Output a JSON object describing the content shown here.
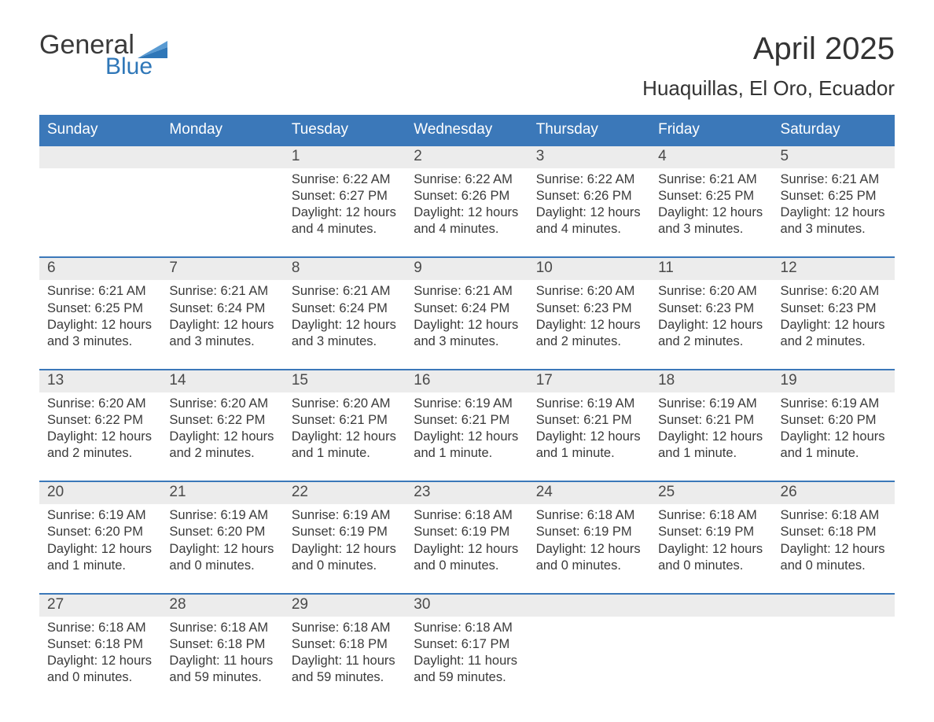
{
  "colors": {
    "header_bg": "#3b78b9",
    "header_text": "#ffffff",
    "daynum_bg": "#ececec",
    "daynum_text": "#4a4a4a",
    "row_border": "#3b78b9",
    "body_text": "#3a3a3a",
    "logo_blue": "#2f77b8",
    "logo_text": "#3a3a3a",
    "background": "#ffffff"
  },
  "fonts": {
    "family": "Arial, Helvetica, sans-serif",
    "month_title_size": 40,
    "location_size": 26,
    "header_size": 19,
    "daynum_size": 19,
    "detail_size": 16.5
  },
  "logo": {
    "word1": "General",
    "word2": "Blue"
  },
  "title": {
    "month": "April 2025",
    "location": "Huaquillas, El Oro, Ecuador"
  },
  "day_headers": [
    "Sunday",
    "Monday",
    "Tuesday",
    "Wednesday",
    "Thursday",
    "Friday",
    "Saturday"
  ],
  "weeks": [
    [
      {
        "blank": true
      },
      {
        "blank": true
      },
      {
        "day": "1",
        "sunrise": "Sunrise: 6:22 AM",
        "sunset": "Sunset: 6:27 PM",
        "day1": "Daylight: 12 hours",
        "day2": "and 4 minutes."
      },
      {
        "day": "2",
        "sunrise": "Sunrise: 6:22 AM",
        "sunset": "Sunset: 6:26 PM",
        "day1": "Daylight: 12 hours",
        "day2": "and 4 minutes."
      },
      {
        "day": "3",
        "sunrise": "Sunrise: 6:22 AM",
        "sunset": "Sunset: 6:26 PM",
        "day1": "Daylight: 12 hours",
        "day2": "and 4 minutes."
      },
      {
        "day": "4",
        "sunrise": "Sunrise: 6:21 AM",
        "sunset": "Sunset: 6:25 PM",
        "day1": "Daylight: 12 hours",
        "day2": "and 3 minutes."
      },
      {
        "day": "5",
        "sunrise": "Sunrise: 6:21 AM",
        "sunset": "Sunset: 6:25 PM",
        "day1": "Daylight: 12 hours",
        "day2": "and 3 minutes."
      }
    ],
    [
      {
        "day": "6",
        "sunrise": "Sunrise: 6:21 AM",
        "sunset": "Sunset: 6:25 PM",
        "day1": "Daylight: 12 hours",
        "day2": "and 3 minutes."
      },
      {
        "day": "7",
        "sunrise": "Sunrise: 6:21 AM",
        "sunset": "Sunset: 6:24 PM",
        "day1": "Daylight: 12 hours",
        "day2": "and 3 minutes."
      },
      {
        "day": "8",
        "sunrise": "Sunrise: 6:21 AM",
        "sunset": "Sunset: 6:24 PM",
        "day1": "Daylight: 12 hours",
        "day2": "and 3 minutes."
      },
      {
        "day": "9",
        "sunrise": "Sunrise: 6:21 AM",
        "sunset": "Sunset: 6:24 PM",
        "day1": "Daylight: 12 hours",
        "day2": "and 3 minutes."
      },
      {
        "day": "10",
        "sunrise": "Sunrise: 6:20 AM",
        "sunset": "Sunset: 6:23 PM",
        "day1": "Daylight: 12 hours",
        "day2": "and 2 minutes."
      },
      {
        "day": "11",
        "sunrise": "Sunrise: 6:20 AM",
        "sunset": "Sunset: 6:23 PM",
        "day1": "Daylight: 12 hours",
        "day2": "and 2 minutes."
      },
      {
        "day": "12",
        "sunrise": "Sunrise: 6:20 AM",
        "sunset": "Sunset: 6:23 PM",
        "day1": "Daylight: 12 hours",
        "day2": "and 2 minutes."
      }
    ],
    [
      {
        "day": "13",
        "sunrise": "Sunrise: 6:20 AM",
        "sunset": "Sunset: 6:22 PM",
        "day1": "Daylight: 12 hours",
        "day2": "and 2 minutes."
      },
      {
        "day": "14",
        "sunrise": "Sunrise: 6:20 AM",
        "sunset": "Sunset: 6:22 PM",
        "day1": "Daylight: 12 hours",
        "day2": "and 2 minutes."
      },
      {
        "day": "15",
        "sunrise": "Sunrise: 6:20 AM",
        "sunset": "Sunset: 6:21 PM",
        "day1": "Daylight: 12 hours",
        "day2": "and 1 minute."
      },
      {
        "day": "16",
        "sunrise": "Sunrise: 6:19 AM",
        "sunset": "Sunset: 6:21 PM",
        "day1": "Daylight: 12 hours",
        "day2": "and 1 minute."
      },
      {
        "day": "17",
        "sunrise": "Sunrise: 6:19 AM",
        "sunset": "Sunset: 6:21 PM",
        "day1": "Daylight: 12 hours",
        "day2": "and 1 minute."
      },
      {
        "day": "18",
        "sunrise": "Sunrise: 6:19 AM",
        "sunset": "Sunset: 6:21 PM",
        "day1": "Daylight: 12 hours",
        "day2": "and 1 minute."
      },
      {
        "day": "19",
        "sunrise": "Sunrise: 6:19 AM",
        "sunset": "Sunset: 6:20 PM",
        "day1": "Daylight: 12 hours",
        "day2": "and 1 minute."
      }
    ],
    [
      {
        "day": "20",
        "sunrise": "Sunrise: 6:19 AM",
        "sunset": "Sunset: 6:20 PM",
        "day1": "Daylight: 12 hours",
        "day2": "and 1 minute."
      },
      {
        "day": "21",
        "sunrise": "Sunrise: 6:19 AM",
        "sunset": "Sunset: 6:20 PM",
        "day1": "Daylight: 12 hours",
        "day2": "and 0 minutes."
      },
      {
        "day": "22",
        "sunrise": "Sunrise: 6:19 AM",
        "sunset": "Sunset: 6:19 PM",
        "day1": "Daylight: 12 hours",
        "day2": "and 0 minutes."
      },
      {
        "day": "23",
        "sunrise": "Sunrise: 6:18 AM",
        "sunset": "Sunset: 6:19 PM",
        "day1": "Daylight: 12 hours",
        "day2": "and 0 minutes."
      },
      {
        "day": "24",
        "sunrise": "Sunrise: 6:18 AM",
        "sunset": "Sunset: 6:19 PM",
        "day1": "Daylight: 12 hours",
        "day2": "and 0 minutes."
      },
      {
        "day": "25",
        "sunrise": "Sunrise: 6:18 AM",
        "sunset": "Sunset: 6:19 PM",
        "day1": "Daylight: 12 hours",
        "day2": "and 0 minutes."
      },
      {
        "day": "26",
        "sunrise": "Sunrise: 6:18 AM",
        "sunset": "Sunset: 6:18 PM",
        "day1": "Daylight: 12 hours",
        "day2": "and 0 minutes."
      }
    ],
    [
      {
        "day": "27",
        "sunrise": "Sunrise: 6:18 AM",
        "sunset": "Sunset: 6:18 PM",
        "day1": "Daylight: 12 hours",
        "day2": "and 0 minutes."
      },
      {
        "day": "28",
        "sunrise": "Sunrise: 6:18 AM",
        "sunset": "Sunset: 6:18 PM",
        "day1": "Daylight: 11 hours",
        "day2": "and 59 minutes."
      },
      {
        "day": "29",
        "sunrise": "Sunrise: 6:18 AM",
        "sunset": "Sunset: 6:18 PM",
        "day1": "Daylight: 11 hours",
        "day2": "and 59 minutes."
      },
      {
        "day": "30",
        "sunrise": "Sunrise: 6:18 AM",
        "sunset": "Sunset: 6:17 PM",
        "day1": "Daylight: 11 hours",
        "day2": "and 59 minutes."
      },
      {
        "blank": true
      },
      {
        "blank": true
      },
      {
        "blank": true
      }
    ]
  ]
}
